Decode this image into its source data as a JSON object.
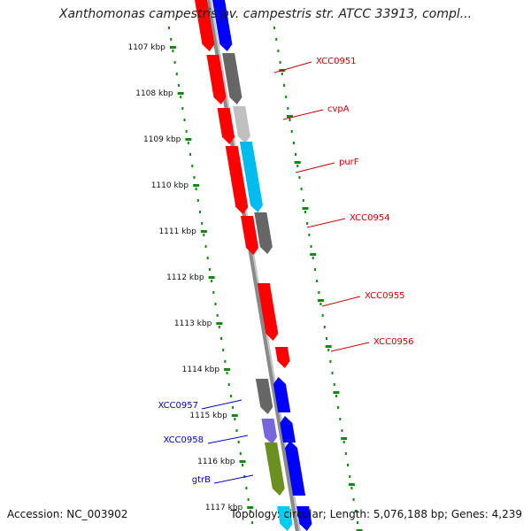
{
  "title": "Xanthomonas campestris pv. campestris str. ATCC 33913, compl...",
  "footer": {
    "accession": "Accession: NC_003902",
    "stats": "Topology: circular; Length: 5,076,188 bp; Genes: 4,239"
  },
  "colors": {
    "forward_gene": "#ff0000",
    "reverse_gene": "#0000ff",
    "other_gene": "#666666",
    "tick": "#118811",
    "label_red": "#cc0000",
    "label_blue": "#0000cc"
  },
  "scale": {
    "unit": "kbp",
    "ticks": [
      {
        "value": 1107,
        "label": "1107 kbp"
      },
      {
        "value": 1108,
        "label": "1108 kbp"
      },
      {
        "value": 1109,
        "label": "1109 kbp"
      },
      {
        "value": 1110,
        "label": "1110 kbp"
      },
      {
        "value": 1111,
        "label": "1111 kbp"
      },
      {
        "value": 1112,
        "label": "1112 kbp"
      },
      {
        "value": 1113,
        "label": "1113 kbp"
      },
      {
        "value": 1114,
        "label": "1114 kbp"
      },
      {
        "value": 1115,
        "label": "1115 kbp"
      },
      {
        "value": 1116,
        "label": "1116 kbp"
      },
      {
        "value": 1117,
        "label": "1117 kbp"
      }
    ]
  },
  "genes": [
    {
      "name": "XCC0951",
      "color": "#ff0000"
    },
    {
      "name": "cvpA",
      "color": "#ff0000"
    },
    {
      "name": "purF",
      "color": "#ff0000"
    },
    {
      "name": "XCC0954",
      "color": "#ff0000"
    },
    {
      "name": "XCC0955",
      "color": "#ff0000"
    },
    {
      "name": "XCC0956",
      "color": "#ff0000"
    },
    {
      "name": "XCC0957",
      "color": "#0000ff"
    },
    {
      "name": "XCC0958",
      "color": "#0000ff"
    },
    {
      "name": "gtrB",
      "color": "#0000ff"
    }
  ]
}
